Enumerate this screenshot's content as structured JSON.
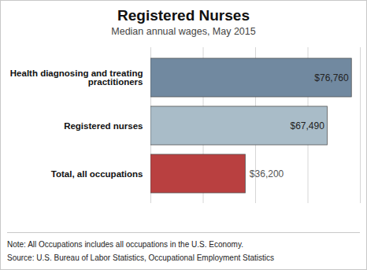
{
  "chart_data": {
    "type": "bar",
    "orientation": "horizontal",
    "title": "Registered Nurses",
    "subtitle": "Median annual wages, May 2015",
    "categories": [
      "Health diagnosing and treating practitioners",
      "Registered nurses",
      "Total, all occupations"
    ],
    "values": [
      76760,
      67490,
      36200
    ],
    "value_labels": [
      "$76,760",
      "$67,490",
      "$36,200"
    ],
    "colors": [
      "#7189a0",
      "#a9bcc8",
      "#b94040"
    ],
    "xlim": [
      0,
      80000
    ],
    "xticks": [
      0,
      20000,
      40000,
      60000,
      80000
    ],
    "grid": true,
    "tick_labels": "y",
    "data_labels": true,
    "notes": [
      "Note: All Occupations includes all occupations in the U.S. Economy.",
      "Source: U.S. Bureau of Labor Statistics, Occupational Employment Statistics"
    ]
  }
}
